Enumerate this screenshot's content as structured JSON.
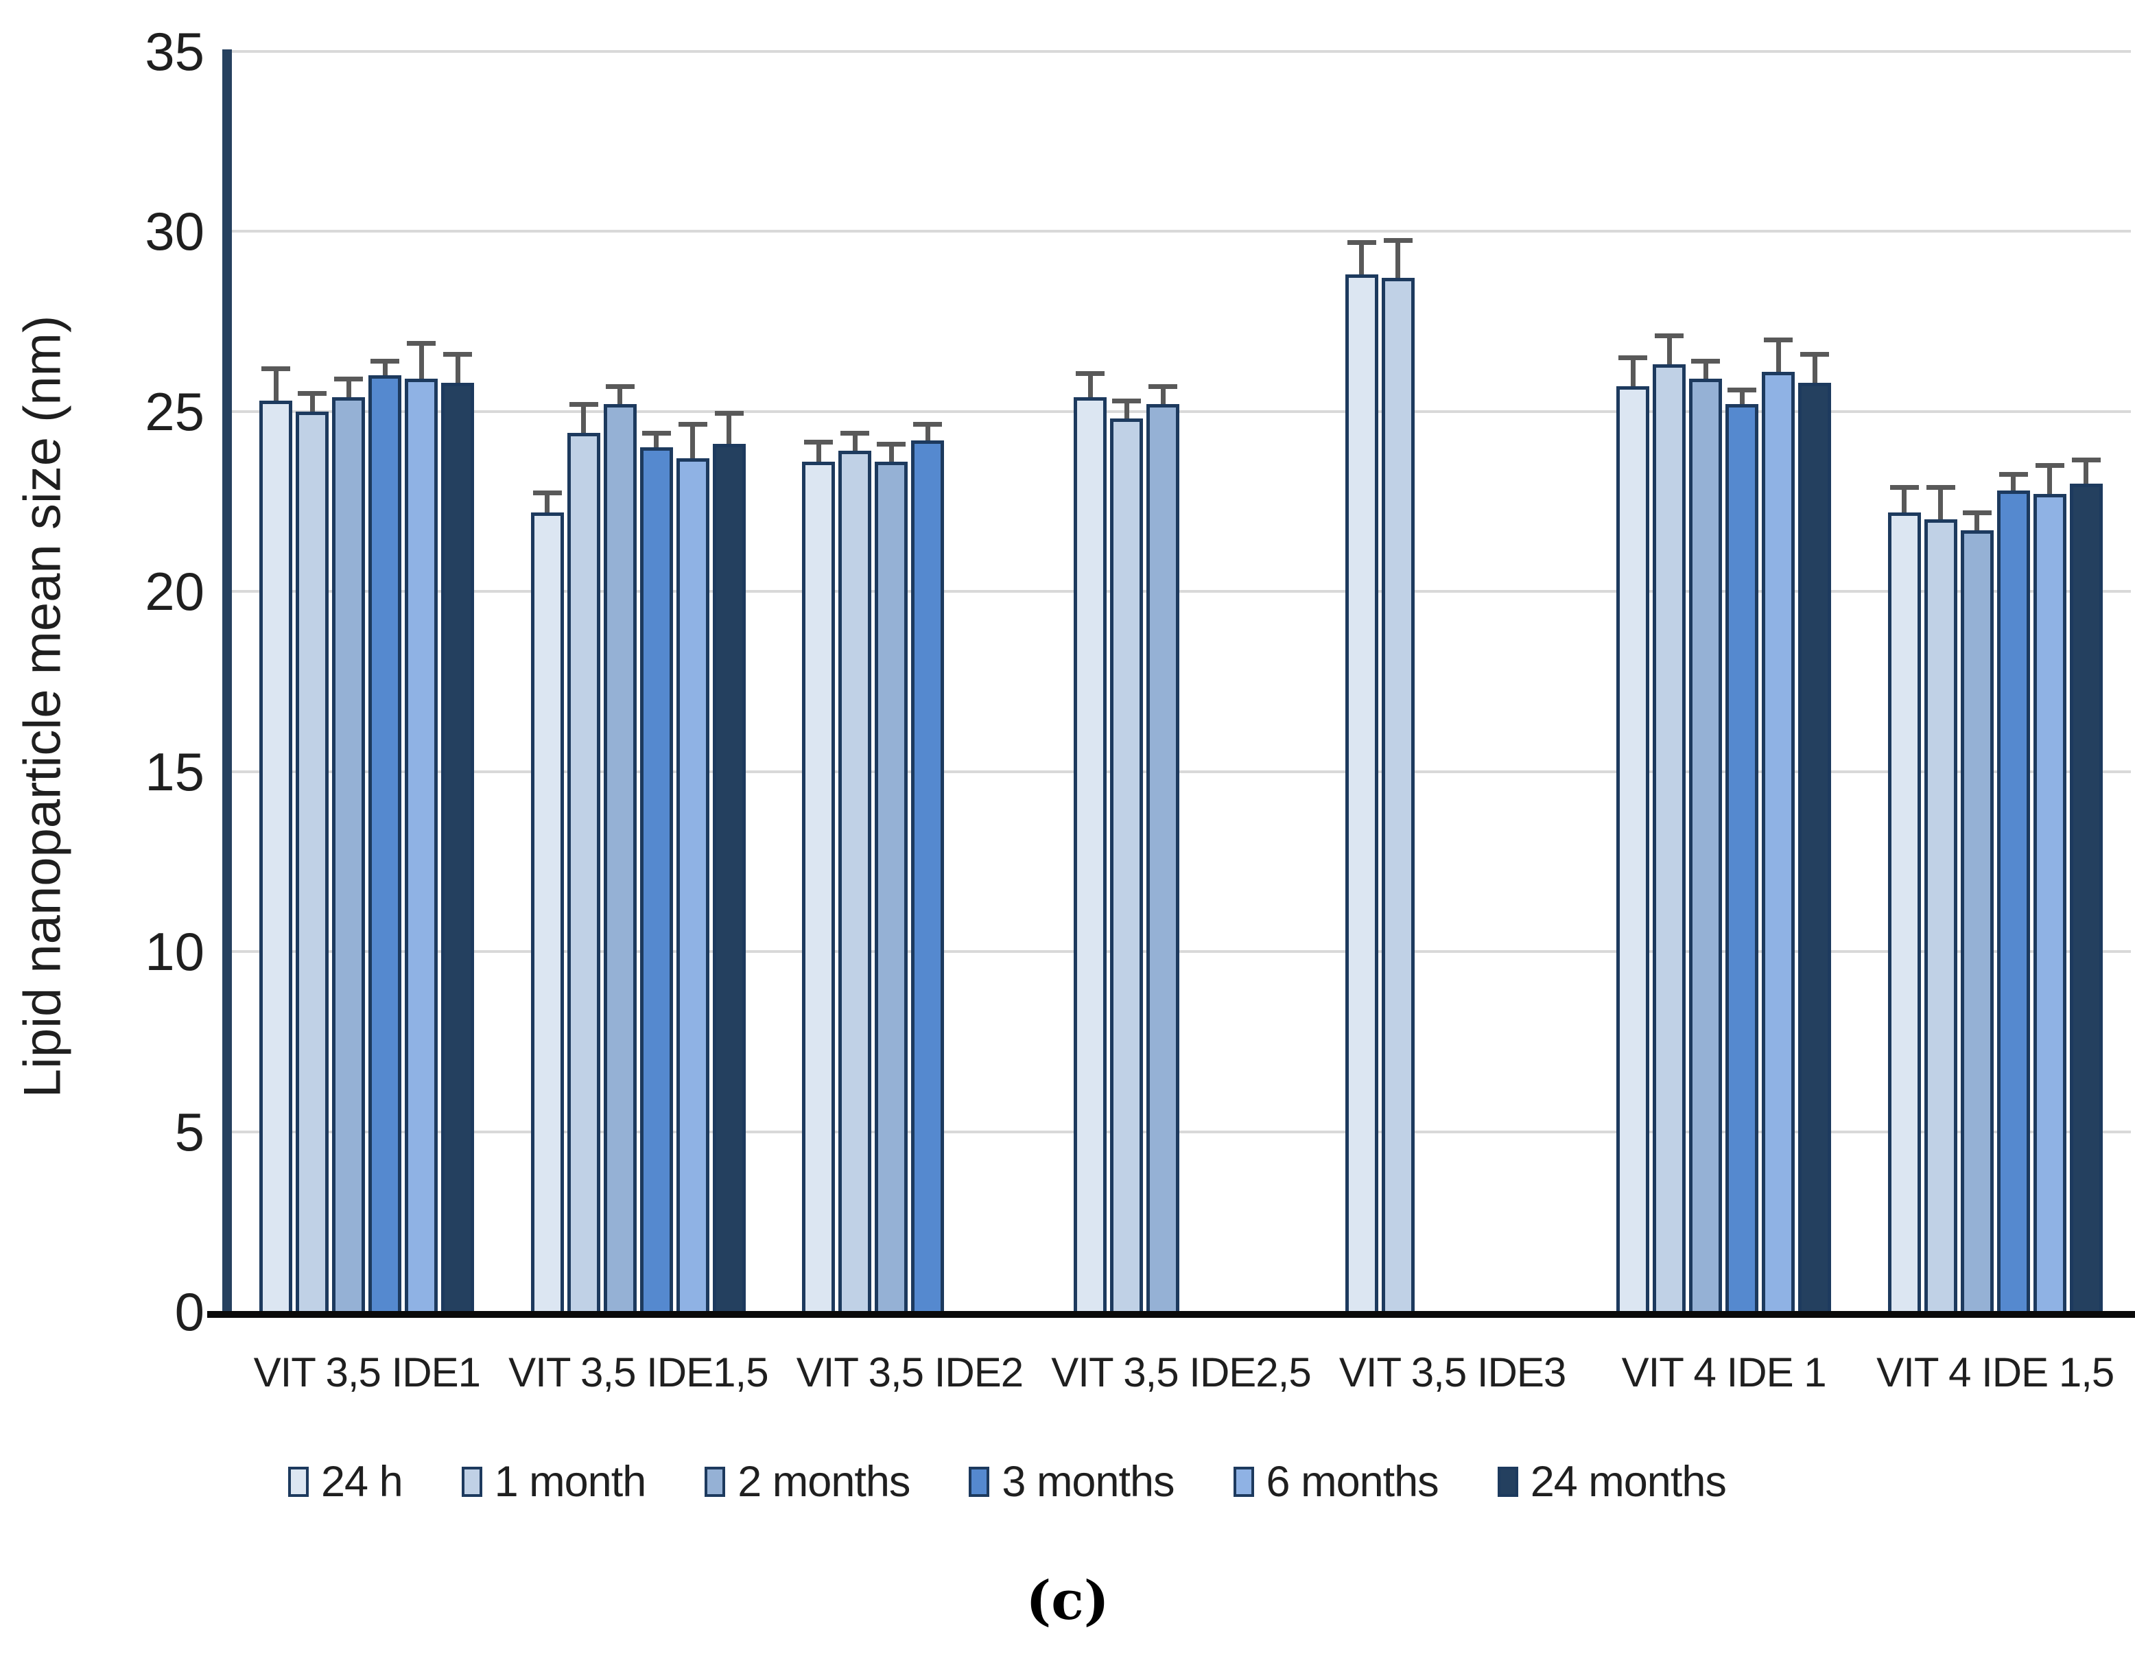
{
  "figure": {
    "y_axis_title": "Lipid nanoparticle mean size (nm)",
    "caption": "(c)"
  },
  "chart_data": {
    "type": "bar",
    "title": "",
    "xlabel": "",
    "ylabel": "Lipid nanoparticle mean size (nm)",
    "caption": "(c)",
    "ylim": [
      0,
      35
    ],
    "yticks": [
      0,
      5,
      10,
      15,
      20,
      25,
      30,
      35
    ],
    "grid": true,
    "legend_position": "bottom",
    "error_bars": "upper",
    "categories": [
      "VIT 3,5 IDE1",
      "VIT 3,5 IDE1,5",
      "VIT 3,5 IDE2",
      "VIT 3,5 IDE2,5",
      "VIT 3,5 IDE3",
      "VIT 4 IDE 1",
      "VIT 4 IDE 1,5"
    ],
    "series": [
      {
        "name": "24 h",
        "color": "#dce6f2",
        "values": [
          25.3,
          22.2,
          23.6,
          25.4,
          28.8,
          25.7,
          22.2
        ],
        "errors": [
          0.9,
          0.55,
          0.55,
          0.65,
          0.9,
          0.8,
          0.7
        ]
      },
      {
        "name": "1 month",
        "color": "#c0d1e6",
        "values": [
          25.0,
          24.4,
          23.9,
          24.8,
          28.7,
          26.3,
          22.0
        ],
        "errors": [
          0.5,
          0.8,
          0.5,
          0.5,
          1.05,
          0.8,
          0.9
        ]
      },
      {
        "name": "2 months",
        "color": "#95b1d5",
        "values": [
          25.4,
          25.2,
          23.6,
          25.2,
          null,
          25.9,
          21.7
        ],
        "errors": [
          0.5,
          0.5,
          0.5,
          0.5,
          null,
          0.5,
          0.5
        ]
      },
      {
        "name": "3 months",
        "color": "#5589cf",
        "values": [
          26.0,
          24.0,
          24.2,
          null,
          null,
          25.2,
          22.8
        ],
        "errors": [
          0.4,
          0.4,
          0.45,
          null,
          null,
          0.4,
          0.45
        ]
      },
      {
        "name": "6 months",
        "color": "#8fb2e4",
        "values": [
          25.9,
          23.7,
          null,
          null,
          null,
          26.1,
          22.7
        ],
        "errors": [
          1.0,
          0.95,
          null,
          null,
          null,
          0.9,
          0.8
        ]
      },
      {
        "name": "24 months",
        "color": "#24405f",
        "values": [
          25.8,
          24.1,
          null,
          null,
          null,
          25.8,
          23.0
        ],
        "errors": [
          0.8,
          0.85,
          null,
          null,
          null,
          0.8,
          0.65
        ]
      }
    ],
    "colors": {
      "bar_border": "#1d3a5e",
      "error_bar": "#595959",
      "gridline": "#d9d9d9",
      "y_axis_line": "#26415f",
      "x_axis_line": "#0a0a0a",
      "text": "#1f1f1f"
    }
  }
}
